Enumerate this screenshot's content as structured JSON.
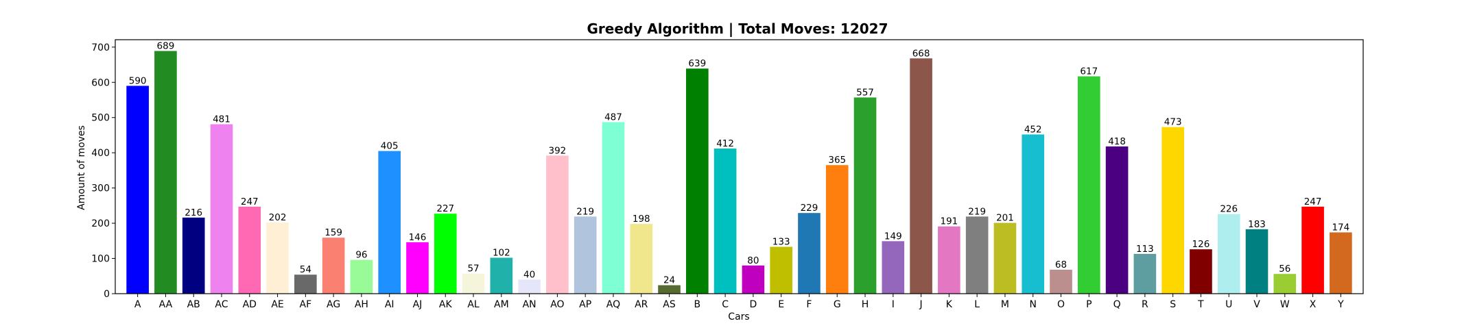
{
  "chart_data": {
    "type": "bar",
    "title": "Greedy Algorithm | Total Moves: 12027",
    "xlabel": "Cars",
    "ylabel": "Amount of moves",
    "ylim": [
      0,
      721
    ],
    "yticks": [
      0,
      100,
      200,
      300,
      400,
      500,
      600,
      700
    ],
    "grid": false,
    "legend": "none",
    "categories": [
      "A",
      "AA",
      "AB",
      "AC",
      "AD",
      "AE",
      "AF",
      "AG",
      "AH",
      "AI",
      "AJ",
      "AK",
      "AL",
      "AM",
      "AN",
      "AO",
      "AP",
      "AQ",
      "AR",
      "AS",
      "B",
      "C",
      "D",
      "E",
      "F",
      "G",
      "H",
      "I",
      "J",
      "K",
      "L",
      "M",
      "N",
      "O",
      "P",
      "Q",
      "R",
      "S",
      "T",
      "U",
      "V",
      "W",
      "X",
      "Y"
    ],
    "values": [
      590,
      689,
      216,
      481,
      247,
      202,
      54,
      159,
      96,
      405,
      146,
      227,
      57,
      102,
      40,
      392,
      219,
      487,
      198,
      24,
      639,
      412,
      80,
      133,
      229,
      365,
      557,
      149,
      668,
      191,
      219,
      201,
      452,
      68,
      617,
      418,
      113,
      473,
      126,
      226,
      183,
      56,
      247,
      174
    ],
    "colors": [
      "#0000ff",
      "#228b22",
      "#000080",
      "#ee82ee",
      "#ff69b4",
      "#ffefd5",
      "#696969",
      "#fa8072",
      "#98fb98",
      "#1e90ff",
      "#ff00ff",
      "#00ff00",
      "#f5f5dc",
      "#20b2aa",
      "#e6e6fa",
      "#ffc0cb",
      "#b0c4de",
      "#7fffd4",
      "#f0e68c",
      "#556b2f",
      "#008000",
      "#00bfbf",
      "#bf00bf",
      "#bfbf00",
      "#1f77b4",
      "#ff7f0e",
      "#2ca02c",
      "#9467bd",
      "#8c564b",
      "#e377c2",
      "#7f7f7f",
      "#bcbd22",
      "#17becf",
      "#bc8f8f",
      "#32cd32",
      "#4b0082",
      "#5f9ea0",
      "#ffd700",
      "#800000",
      "#afeeee",
      "#008080",
      "#9acd32",
      "#ff0000",
      "#d2691e"
    ]
  }
}
